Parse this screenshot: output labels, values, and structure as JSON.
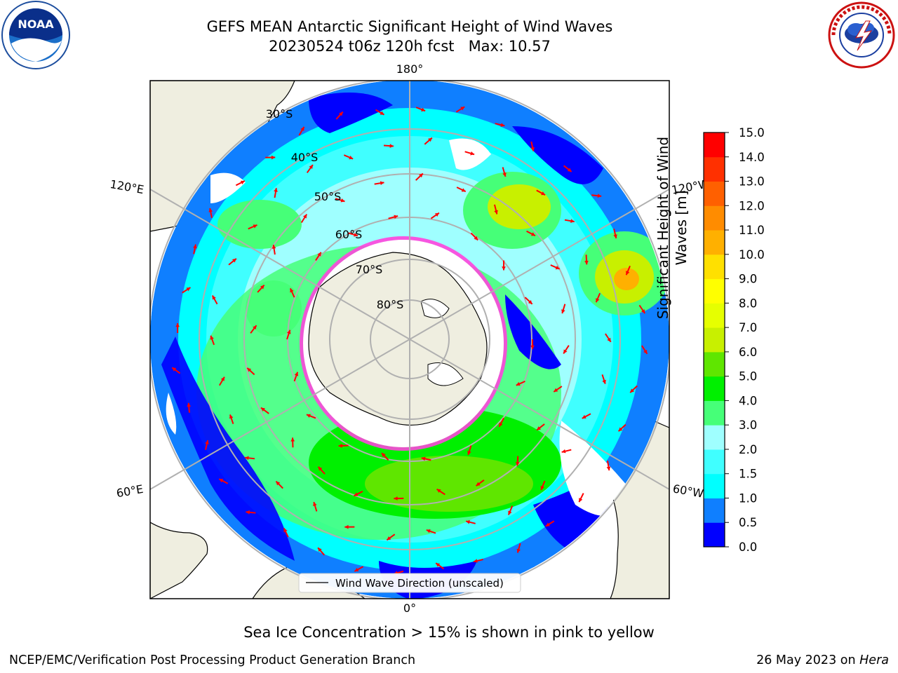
{
  "logos": {
    "left": "noaa-logo",
    "right": "nws-logo",
    "left_text": "NOAA"
  },
  "title": {
    "line1": "GEFS MEAN Antarctic Significant Height of Wind Waves",
    "line2": "20230524 t06z 120h fcst   Max: 10.57"
  },
  "map": {
    "projection": "south-polar-stereographic",
    "lon_labels": {
      "top": "180°",
      "bottom": "0°",
      "upper_left": "120°E",
      "upper_right": "120°W",
      "lower_left": "60°E",
      "lower_right": "60°W"
    },
    "lat_labels": [
      "30°S",
      "40°S",
      "50°S",
      "60°S",
      "70°S",
      "80°S"
    ],
    "legend": "Wind Wave Direction (unscaled)",
    "arrow_color": "#ff0000",
    "land_color": "#efeee0",
    "sea_ice_color": "#ff44dd"
  },
  "colorbar": {
    "label_line1": "Significant Height of Wind",
    "label_line2": "Waves [m]",
    "ticks": [
      "0.0",
      "0.5",
      "1.0",
      "1.5",
      "2.0",
      "3.0",
      "4.0",
      "5.0",
      "6.0",
      "7.0",
      "8.0",
      "9.0",
      "10.0",
      "11.0",
      "12.0",
      "13.0",
      "14.0",
      "15.0"
    ],
    "colors": [
      "#0000ff",
      "#0f7fff",
      "#00ffff",
      "#40ffff",
      "#9fffff",
      "#46ff78",
      "#00f000",
      "#5fe600",
      "#c8f000",
      "#e6ff00",
      "#ffff00",
      "#ffe000",
      "#ffb000",
      "#ff8c00",
      "#ff6000",
      "#ff3000",
      "#ff0000"
    ]
  },
  "footer": {
    "note": "Sea Ice Concentration > 15% is shown in pink to yellow",
    "credit": "NCEP/EMC/Verification Post Processing Product Generation Branch",
    "date": "26 May 2023 on ",
    "host": "Hera"
  }
}
